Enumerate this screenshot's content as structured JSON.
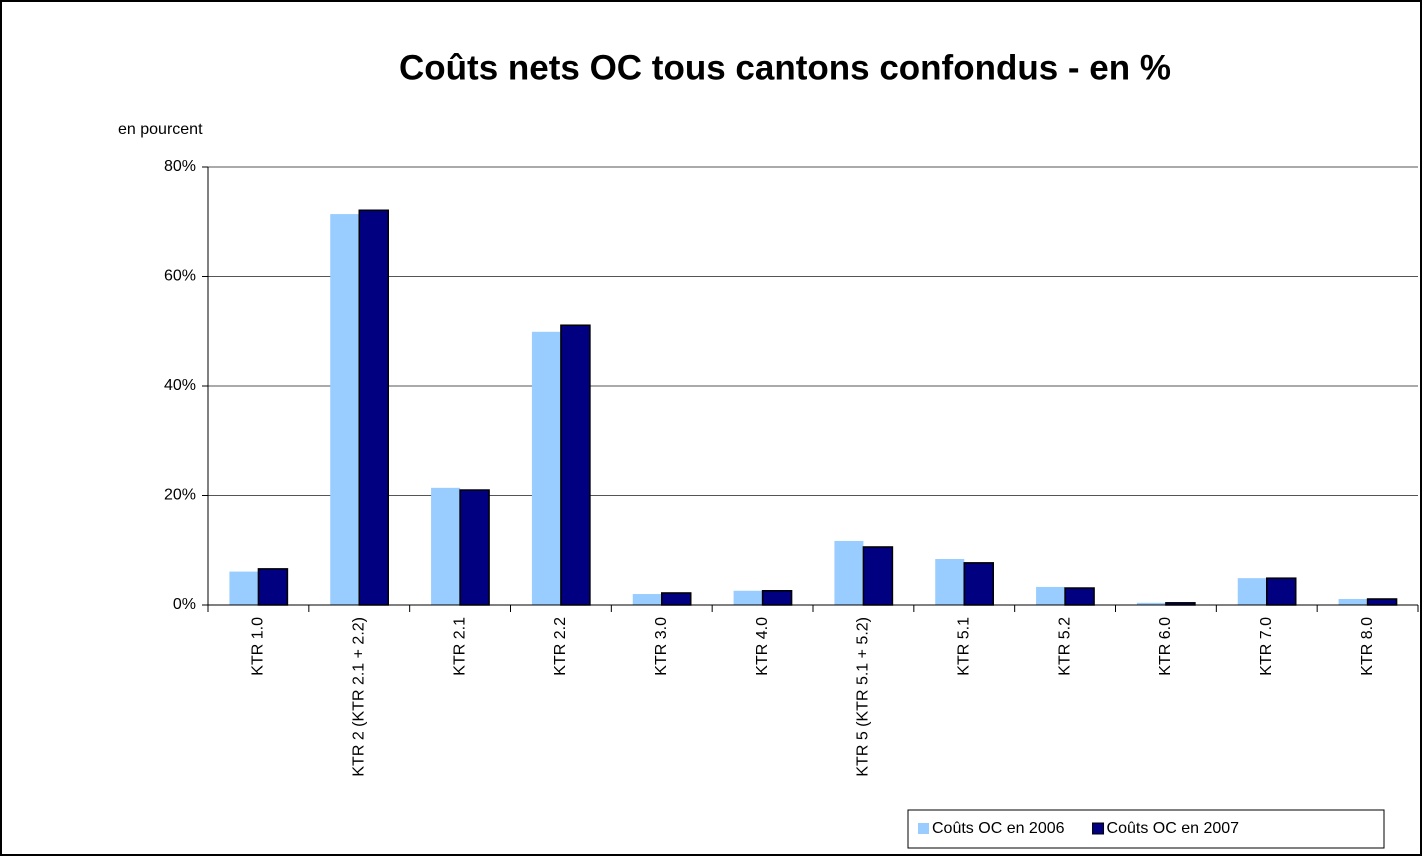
{
  "chart_data": {
    "type": "bar",
    "title": "Coûts nets OC tous cantons confondus - en %",
    "y_label": "en pourcent",
    "categories": [
      "KTR 1.0",
      "KTR 2 (KTR 2.1 + 2.2)",
      "KTR 2.1",
      "KTR 2.2",
      "KTR 3.0",
      "KTR 4.0",
      "KTR 5 (KTR 5.1 + 5.2)",
      "KTR 5.1",
      "KTR 5.2",
      "KTR 6.0",
      "KTR 7.0",
      "KTR 8.0"
    ],
    "series": [
      {
        "name": "Coûts OC en 2006",
        "color": "#99ccff",
        "values": [
          6.1,
          71.4,
          21.4,
          49.9,
          2.0,
          2.6,
          11.7,
          8.4,
          3.3,
          0.4,
          4.9,
          1.1
        ]
      },
      {
        "name": "Coûts OC en 2007",
        "color": "#000080",
        "values": [
          6.6,
          72.1,
          21.0,
          51.1,
          2.2,
          2.6,
          10.6,
          7.7,
          3.1,
          0.4,
          4.9,
          1.1
        ]
      }
    ],
    "ylim": [
      0,
      80
    ],
    "yticks": [
      {
        "value": 0,
        "label": "0%"
      },
      {
        "value": 20,
        "label": "20%"
      },
      {
        "value": 40,
        "label": "40%"
      },
      {
        "value": 60,
        "label": "60%"
      },
      {
        "value": 80,
        "label": "80%"
      }
    ],
    "grid": true,
    "legend": "lower right"
  }
}
